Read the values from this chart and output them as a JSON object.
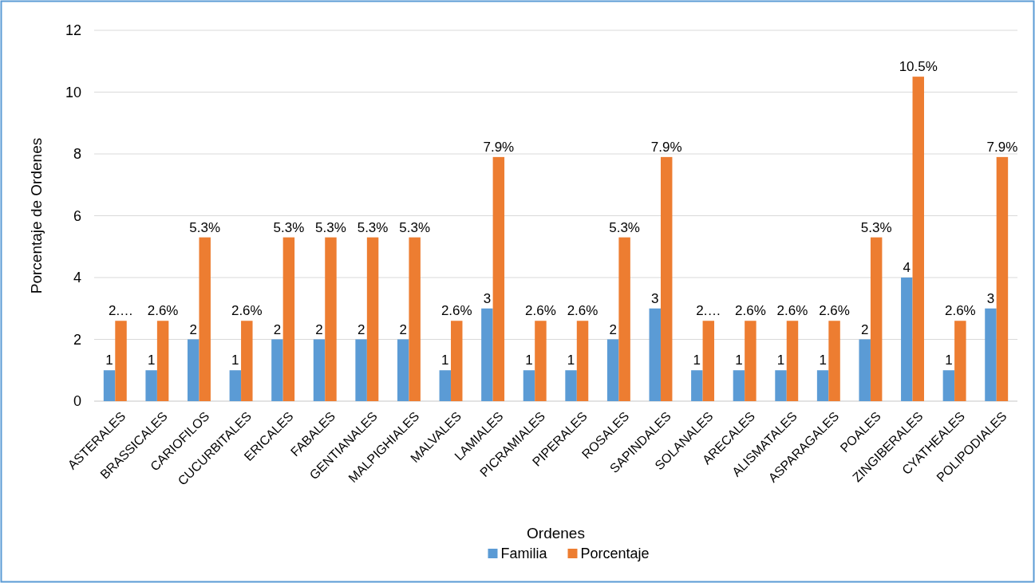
{
  "chart_data": {
    "type": "bar",
    "xlabel": "Ordenes",
    "ylabel": "Porcentaje de Ordenes",
    "categories": [
      "ASTERALES",
      "BRASSICALES",
      "CARIOFILOS",
      "CUCURBITALES",
      "ERICALES",
      "FABALES",
      "GENTIANALES",
      "MALPIGHIALES",
      "MALVALES",
      "LAMIALES",
      "PICRAMIALES",
      "PIPERALES",
      "ROSALES",
      "SAPINDALES",
      "SOLANALES",
      "ARECALES",
      "ALISMATALES",
      "ASPARAGALES",
      "POALES",
      "ZINGIBERALES",
      "CYATHEALES",
      "POLIPODIALES"
    ],
    "series": [
      {
        "name": "Familia",
        "color": "#5b9bd5",
        "values": [
          1,
          1,
          2,
          1,
          2,
          2,
          2,
          2,
          1,
          3,
          1,
          1,
          2,
          3,
          1,
          1,
          1,
          1,
          2,
          4,
          1,
          3
        ],
        "value_labels": [
          "1",
          "1",
          "2",
          "1",
          "2",
          "2",
          "2",
          "2",
          "1",
          "3",
          "1",
          "1",
          "2",
          "3",
          "1",
          "1",
          "1",
          "1",
          "2",
          "4",
          "1",
          "3"
        ]
      },
      {
        "name": "Porcentaje",
        "color": "#ed7d31",
        "values": [
          2.6,
          2.6,
          5.3,
          2.6,
          5.3,
          5.3,
          5.3,
          5.3,
          2.6,
          7.9,
          2.6,
          2.6,
          5.3,
          7.9,
          2.6,
          2.6,
          2.6,
          2.6,
          5.3,
          10.5,
          2.6,
          7.9
        ],
        "value_labels": [
          "2.…",
          "2.6%",
          "5.3%",
          "2.6%",
          "5.3%",
          "5.3%",
          "5.3%",
          "5.3%",
          "2.6%",
          "7.9%",
          "2.6%",
          "2.6%",
          "5.3%",
          "7.9%",
          "2.…",
          "2.6%",
          "2.6%",
          "2.6%",
          "5.3%",
          "10.5%",
          "2.6%",
          "7.9%"
        ]
      }
    ],
    "ylim": [
      0,
      12
    ],
    "yticks": [
      0,
      2,
      4,
      6,
      8,
      10,
      12
    ],
    "grid": "y",
    "legend": "bottom"
  }
}
